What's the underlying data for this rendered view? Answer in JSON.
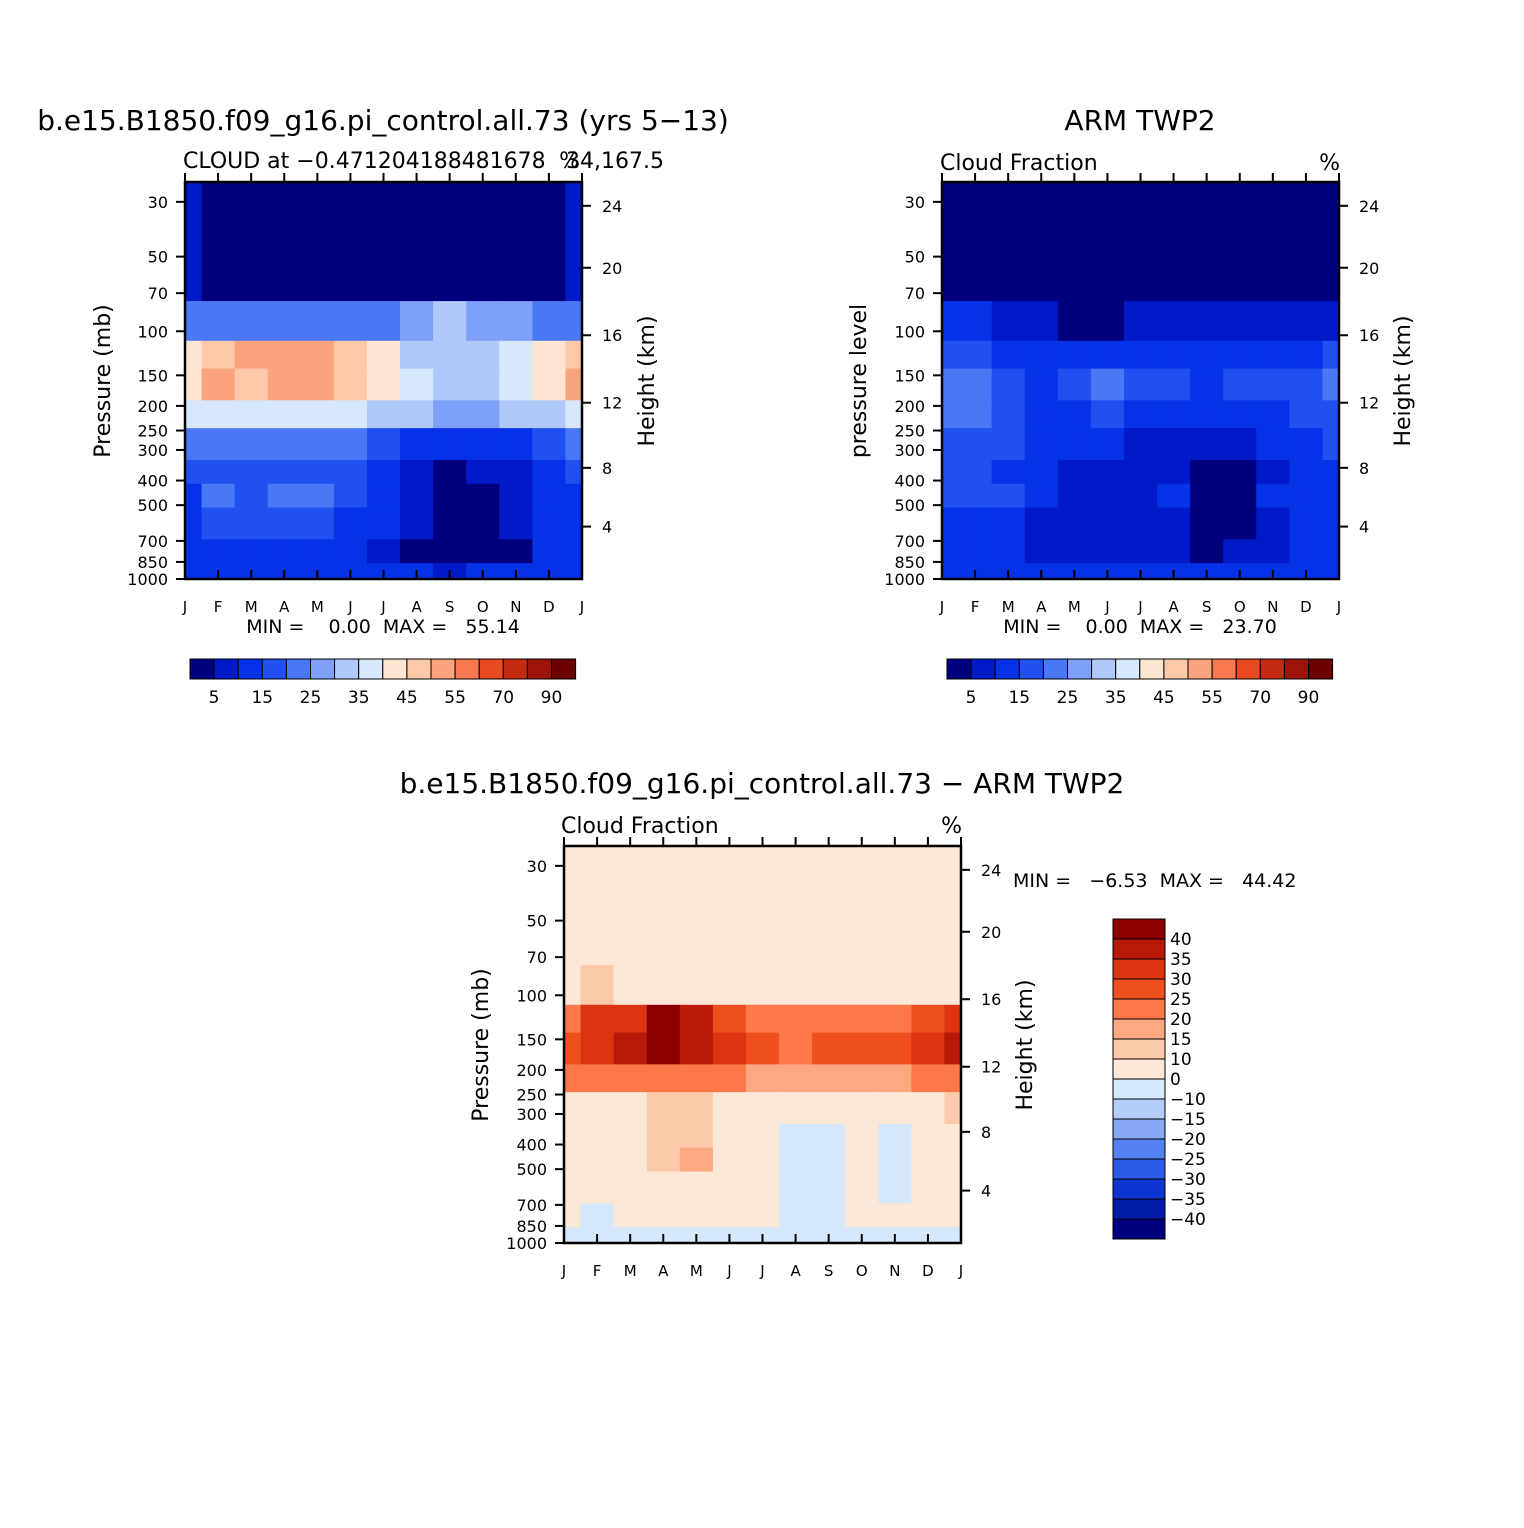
{
  "chart_data": [
    {
      "type": "heatmap",
      "title": "b.e15.B1850.f09_g16.pi_control.all.73 (yrs 5−13)",
      "subtitle_left": "CLOUD at −0.471204188481678",
      "subtitle_right": "34,167.5",
      "units": "%",
      "ylabel": "Pressure (mb)",
      "ylabel_right": "Height (km)",
      "stats": "MIN =    0.00  MAX =   55.14",
      "x": [
        "J",
        "F",
        "M",
        "A",
        "M",
        "J",
        "J",
        "A",
        "S",
        "O",
        "N",
        "D",
        "J"
      ],
      "y_pressure_ticks": [
        "30",
        "50",
        "70",
        "100",
        "150",
        "200",
        "250",
        "300",
        "400",
        "500",
        "700",
        "850",
        "1000"
      ],
      "y_height_ticks": [
        "24",
        "20",
        "16",
        "12",
        "8",
        "4"
      ],
      "colorbar_labels": [
        "5",
        "15",
        "25",
        "35",
        "45",
        "55",
        "70",
        "90"
      ],
      "colorbar_colors": [
        "#00007f",
        "#001ac8",
        "#0532e6",
        "#2050f0",
        "#4a78f5",
        "#7ea0f8",
        "#b0c8fa",
        "#d8e8fc",
        "#fce6d2",
        "#fcc8a8",
        "#fca47e",
        "#f87850",
        "#e84a22",
        "#c42a10",
        "#9c1408",
        "#6a0000"
      ],
      "values_pct": [
        [
          5,
          4,
          4,
          4,
          4,
          3,
          3,
          3,
          3,
          3,
          4,
          4,
          6
        ],
        [
          22,
          20,
          21,
          20,
          20,
          22,
          24,
          28,
          30,
          28,
          26,
          22,
          22
        ],
        [
          40,
          48,
          52,
          51,
          53,
          47,
          42,
          34,
          30,
          32,
          35,
          42,
          46
        ],
        [
          44,
          53,
          47,
          52,
          50,
          46,
          41,
          38,
          32,
          34,
          38,
          44,
          50
        ],
        [
          36,
          38,
          36,
          38,
          38,
          36,
          33,
          30,
          28,
          29,
          30,
          34,
          38
        ],
        [
          22,
          22,
          21,
          21,
          22,
          20,
          18,
          14,
          12,
          12,
          14,
          18,
          20
        ],
        [
          18,
          17,
          18,
          17,
          18,
          16,
          12,
          8,
          4,
          5,
          8,
          14,
          18
        ],
        [
          14,
          20,
          18,
          22,
          22,
          16,
          10,
          6,
          2,
          2,
          6,
          12,
          14
        ],
        [
          14,
          18,
          16,
          18,
          18,
          14,
          10,
          6,
          2,
          2,
          6,
          12,
          14
        ],
        [
          12,
          12,
          12,
          12,
          12,
          12,
          8,
          4,
          2,
          2,
          4,
          10,
          12
        ],
        [
          14,
          14,
          14,
          14,
          14,
          14,
          12,
          10,
          8,
          10,
          12,
          14,
          14
        ]
      ]
    },
    {
      "type": "heatmap",
      "title": "ARM TWP2",
      "subtitle_left": "Cloud Fraction",
      "units": "%",
      "ylabel": "pressure level",
      "ylabel_right": "Height (km)",
      "stats": "MIN =    0.00  MAX =   23.70",
      "x": [
        "J",
        "F",
        "M",
        "A",
        "M",
        "J",
        "J",
        "A",
        "S",
        "O",
        "N",
        "D",
        "J"
      ],
      "y_pressure_ticks": [
        "30",
        "50",
        "70",
        "100",
        "150",
        "200",
        "250",
        "300",
        "400",
        "500",
        "700",
        "850",
        "1000"
      ],
      "y_height_ticks": [
        "24",
        "20",
        "16",
        "12",
        "8",
        "4"
      ],
      "colorbar_labels": [
        "5",
        "15",
        "25",
        "35",
        "45",
        "55",
        "70",
        "90"
      ],
      "values_pct": [
        [
          3,
          3,
          3,
          3,
          3,
          3,
          3,
          3,
          3,
          3,
          3,
          3,
          3
        ],
        [
          10,
          10,
          8,
          6,
          4,
          4,
          5,
          6,
          8,
          6,
          5,
          6,
          9
        ],
        [
          18,
          16,
          14,
          12,
          12,
          14,
          14,
          14,
          12,
          12,
          14,
          14,
          16
        ],
        [
          24,
          22,
          16,
          14,
          16,
          20,
          18,
          16,
          14,
          15,
          16,
          18,
          20
        ],
        [
          22,
          20,
          16,
          14,
          14,
          16,
          14,
          12,
          12,
          12,
          14,
          16,
          18
        ],
        [
          18,
          18,
          16,
          12,
          10,
          10,
          9,
          9,
          6,
          6,
          10,
          12,
          16
        ],
        [
          16,
          16,
          14,
          10,
          8,
          8,
          8,
          8,
          4,
          4,
          8,
          12,
          14
        ],
        [
          16,
          18,
          16,
          10,
          6,
          8,
          8,
          10,
          2,
          2,
          10,
          12,
          14
        ],
        [
          14,
          14,
          12,
          8,
          6,
          8,
          8,
          8,
          2,
          2,
          8,
          10,
          12
        ],
        [
          12,
          12,
          10,
          8,
          6,
          8,
          8,
          8,
          4,
          6,
          8,
          10,
          10
        ],
        [
          10,
          10,
          10,
          10,
          10,
          10,
          10,
          10,
          10,
          10,
          10,
          10,
          10
        ]
      ]
    },
    {
      "type": "heatmap",
      "title": "b.e15.B1850.f09_g16.pi_control.all.73 − ARM TWP2",
      "subtitle_left": "Cloud Fraction",
      "units": "%",
      "ylabel": "Pressure (mb)",
      "ylabel_right": "Height (km)",
      "stats": "MIN =   −6.53  MAX =   44.42",
      "x": [
        "J",
        "F",
        "M",
        "A",
        "M",
        "J",
        "J",
        "A",
        "S",
        "O",
        "N",
        "D",
        "J"
      ],
      "y_pressure_ticks": [
        "30",
        "50",
        "70",
        "100",
        "150",
        "200",
        "250",
        "300",
        "400",
        "500",
        "700",
        "850",
        "1000"
      ],
      "y_height_ticks": [
        "24",
        "20",
        "16",
        "12",
        "8",
        "4"
      ],
      "colorbar_labels": [
        "40",
        "35",
        "30",
        "25",
        "20",
        "15",
        "10",
        "0",
        "−10",
        "−15",
        "−20",
        "−25",
        "−30",
        "−35",
        "−40"
      ],
      "colorbar_colors": [
        "#8c0000",
        "#b81808",
        "#dc3410",
        "#f05020",
        "#fc7848",
        "#fca880",
        "#fccaaa",
        "#fde8d8",
        "#d6e8fc",
        "#b4ccfa",
        "#88a8f6",
        "#5482f2",
        "#2c5ae8",
        "#0c34d0",
        "#021aa8",
        "#00007f"
      ],
      "values_pct": [
        [
          2,
          2,
          2,
          2,
          2,
          2,
          2,
          2,
          2,
          2,
          2,
          2,
          2
        ],
        [
          8,
          10,
          8,
          8,
          6,
          2,
          6,
          6,
          6,
          4,
          4,
          2,
          2
        ],
        [
          24,
          30,
          34,
          40,
          36,
          28,
          24,
          22,
          24,
          22,
          24,
          28,
          30
        ],
        [
          28,
          32,
          36,
          44,
          38,
          30,
          26,
          24,
          26,
          26,
          26,
          32,
          36
        ],
        [
          20,
          22,
          20,
          22,
          24,
          20,
          18,
          16,
          16,
          16,
          18,
          20,
          22
        ],
        [
          8,
          8,
          8,
          10,
          12,
          8,
          6,
          6,
          6,
          6,
          6,
          8,
          10
        ],
        [
          6,
          6,
          6,
          10,
          12,
          6,
          2,
          -2,
          -2,
          2,
          -2,
          4,
          6
        ],
        [
          4,
          4,
          4,
          10,
          16,
          6,
          2,
          -2,
          -2,
          4,
          -2,
          4,
          6
        ],
        [
          4,
          4,
          4,
          8,
          8,
          4,
          2,
          -2,
          -2,
          2,
          -2,
          2,
          4
        ],
        [
          2,
          -2,
          2,
          4,
          4,
          2,
          2,
          -2,
          -2,
          2,
          2,
          2,
          4
        ],
        [
          -2,
          -2,
          -2,
          -2,
          -2,
          -2,
          -2,
          -2,
          -2,
          -2,
          -2,
          -2,
          -2
        ]
      ]
    }
  ]
}
